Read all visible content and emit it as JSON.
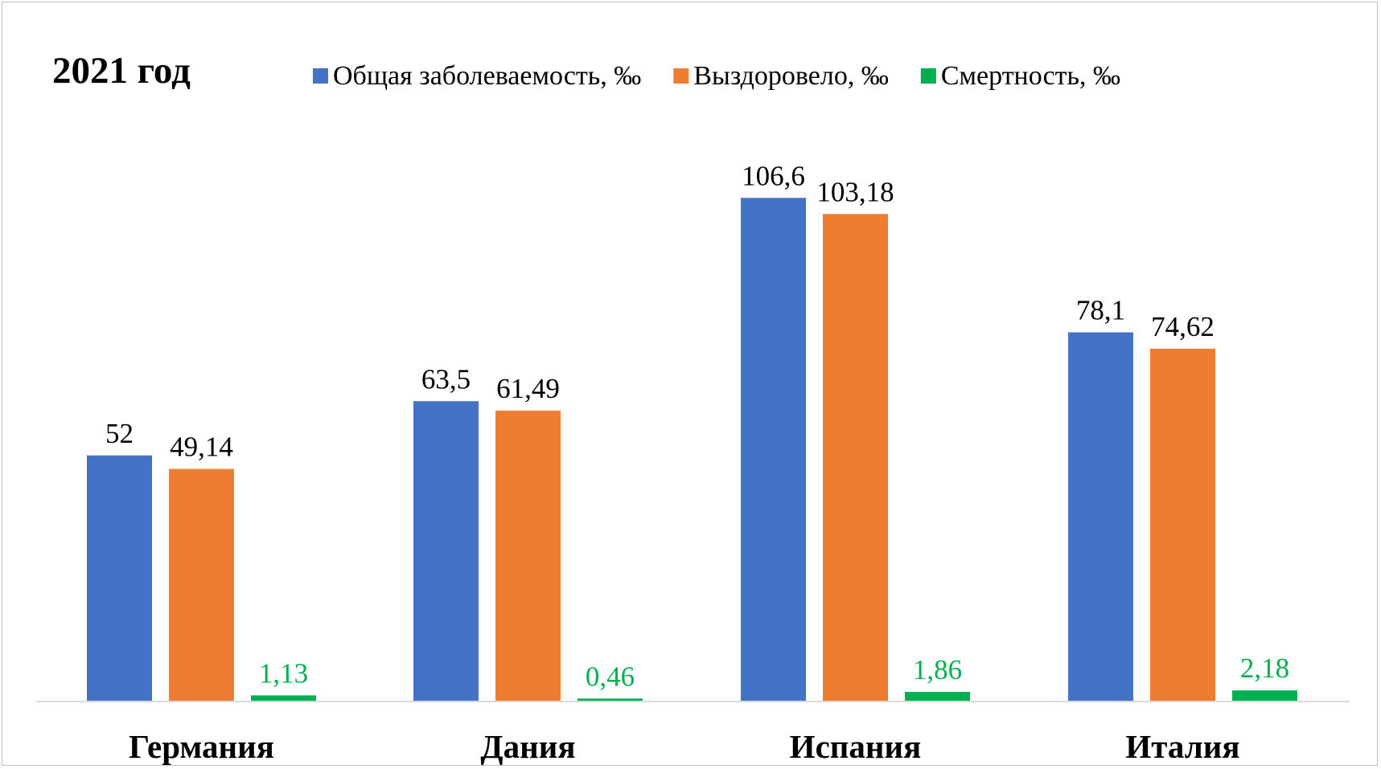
{
  "chart_data": {
    "type": "bar",
    "title": "2021 год",
    "categories": [
      "Германия",
      "Дания",
      "Испания",
      "Италия"
    ],
    "series": [
      {
        "name": "Общая заболеваемость, ‰",
        "color": "#4472C4",
        "values": [
          52,
          63.5,
          106.6,
          78.1
        ],
        "labels": [
          "52",
          "63,5",
          "106,6",
          "78,1"
        ],
        "label_color": "#000000"
      },
      {
        "name": "Выздоровело, ‰",
        "color": "#ED7D31",
        "values": [
          49.14,
          61.49,
          103.18,
          74.62
        ],
        "labels": [
          "49,14",
          "61,49",
          "103,18",
          "74,62"
        ],
        "label_color": "#000000"
      },
      {
        "name": "Смертность, ‰",
        "color": "#00B050",
        "values": [
          1.13,
          0.46,
          1.86,
          2.18
        ],
        "labels": [
          "1,13",
          "0,46",
          "1,86",
          "2,18"
        ],
        "label_color": "#00B050"
      }
    ],
    "xlabel": "",
    "ylabel": "",
    "ylim": [
      0,
      110
    ],
    "grid": false,
    "legend": "top"
  }
}
